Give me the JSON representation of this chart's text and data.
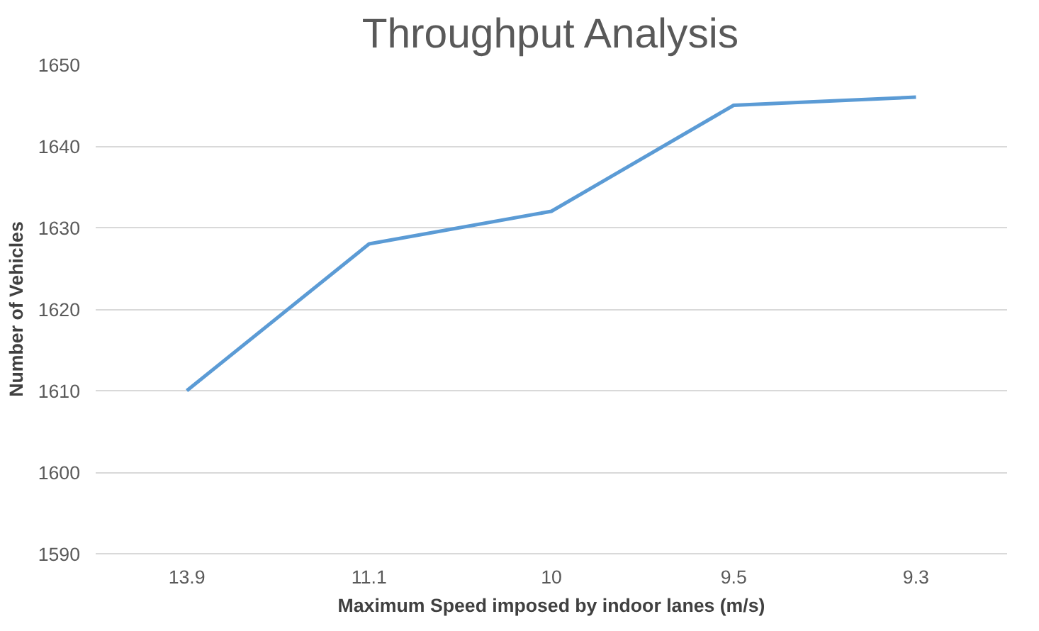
{
  "chart_data": {
    "type": "line",
    "title": "Throughput Analysis",
    "xlabel": "Maximum Speed imposed by indoor lanes (m/s)",
    "ylabel": "Number of Vehicles",
    "categories": [
      "13.9",
      "11.1",
      "10",
      "9.5",
      "9.3"
    ],
    "series": [
      {
        "color": "#5b9bd5",
        "values": [
          1610,
          1628,
          1632,
          1645,
          1646
        ]
      }
    ],
    "ylim": [
      1590,
      1650
    ],
    "yticks": [
      1590,
      1600,
      1610,
      1620,
      1630,
      1640,
      1650
    ],
    "grid": "y"
  }
}
